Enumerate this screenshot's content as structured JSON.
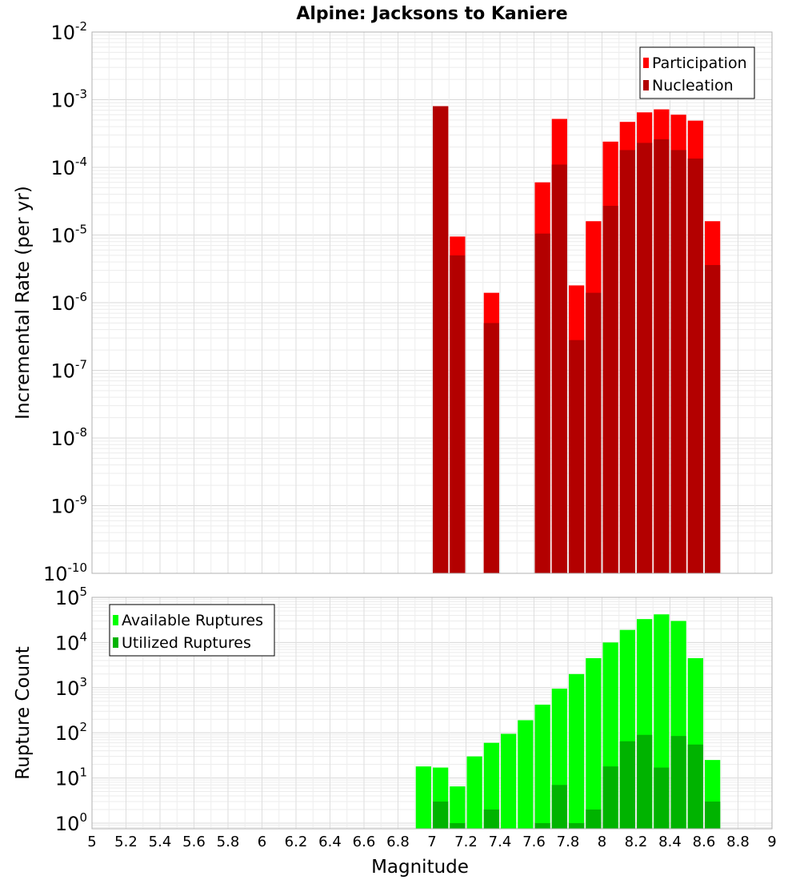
{
  "chart_data": [
    {
      "type": "bar",
      "title": "Alpine: Jacksons to Kaniere",
      "ylabel": "Incremental Rate (per yr)",
      "xlabel": "",
      "x_scale": "linear",
      "y_scale": "log",
      "xlim": [
        5,
        9
      ],
      "ylim": [
        1e-10,
        0.01
      ],
      "y_tick_exponents": [
        -2,
        -3,
        -4,
        -5,
        -6,
        -7,
        -8,
        -9,
        -10
      ],
      "grid": true,
      "legend_position": "top-right",
      "bin_width": 0.1,
      "x": [
        7.05,
        7.15,
        7.35,
        7.65,
        7.75,
        7.85,
        7.95,
        8.05,
        8.15,
        8.25,
        8.35,
        8.45,
        8.55,
        8.65
      ],
      "series": [
        {
          "name": "Participation",
          "color": "#ff0000",
          "values": [
            0.0008,
            9.5e-06,
            1.4e-06,
            6e-05,
            0.00052,
            1.8e-06,
            1.6e-05,
            0.00024,
            0.00047,
            0.00065,
            0.00072,
            0.0006,
            0.00049,
            1.6e-05
          ]
        },
        {
          "name": "Nucleation",
          "color": "#b30000",
          "values": [
            0.0008,
            5e-06,
            5e-07,
            1.05e-05,
            0.00011,
            2.8e-07,
            1.4e-06,
            2.7e-05,
            0.00018,
            0.00023,
            0.00026,
            0.00018,
            0.000135,
            3.6e-06
          ]
        }
      ]
    },
    {
      "type": "bar",
      "title": "",
      "ylabel": "Rupture Count",
      "xlabel": "Magnitude",
      "x_scale": "linear",
      "y_scale": "log",
      "xlim": [
        5,
        9
      ],
      "ylim": [
        0.75,
        100000
      ],
      "y_tick_exponents": [
        5,
        4,
        3,
        2,
        1,
        0
      ],
      "x_ticks": [
        "5",
        "5.2",
        "5.4",
        "5.6",
        "5.8",
        "6",
        "6.2",
        "6.4",
        "6.6",
        "6.8",
        "7",
        "7.2",
        "7.4",
        "7.6",
        "7.8",
        "8",
        "8.2",
        "8.4",
        "8.6",
        "8.8",
        "9"
      ],
      "grid": true,
      "legend_position": "top-left",
      "bin_width": 0.1,
      "x": [
        6.95,
        7.05,
        7.15,
        7.25,
        7.35,
        7.45,
        7.55,
        7.65,
        7.75,
        7.85,
        7.95,
        8.05,
        8.15,
        8.25,
        8.35,
        8.45,
        8.55,
        8.65
      ],
      "series": [
        {
          "name": "Available Ruptures",
          "color": "#00ff00",
          "values": [
            18,
            17,
            6.5,
            30,
            60,
            95,
            190,
            420,
            950,
            2000,
            4500,
            10000,
            19000,
            33000,
            42000,
            30000,
            4500,
            25
          ]
        },
        {
          "name": "Utilized Ruptures",
          "color": "#00b300",
          "values": [
            0,
            3,
            1,
            0,
            2,
            0,
            0,
            1,
            7,
            1,
            2,
            18,
            65,
            90,
            17,
            85,
            55,
            3
          ]
        }
      ]
    }
  ]
}
